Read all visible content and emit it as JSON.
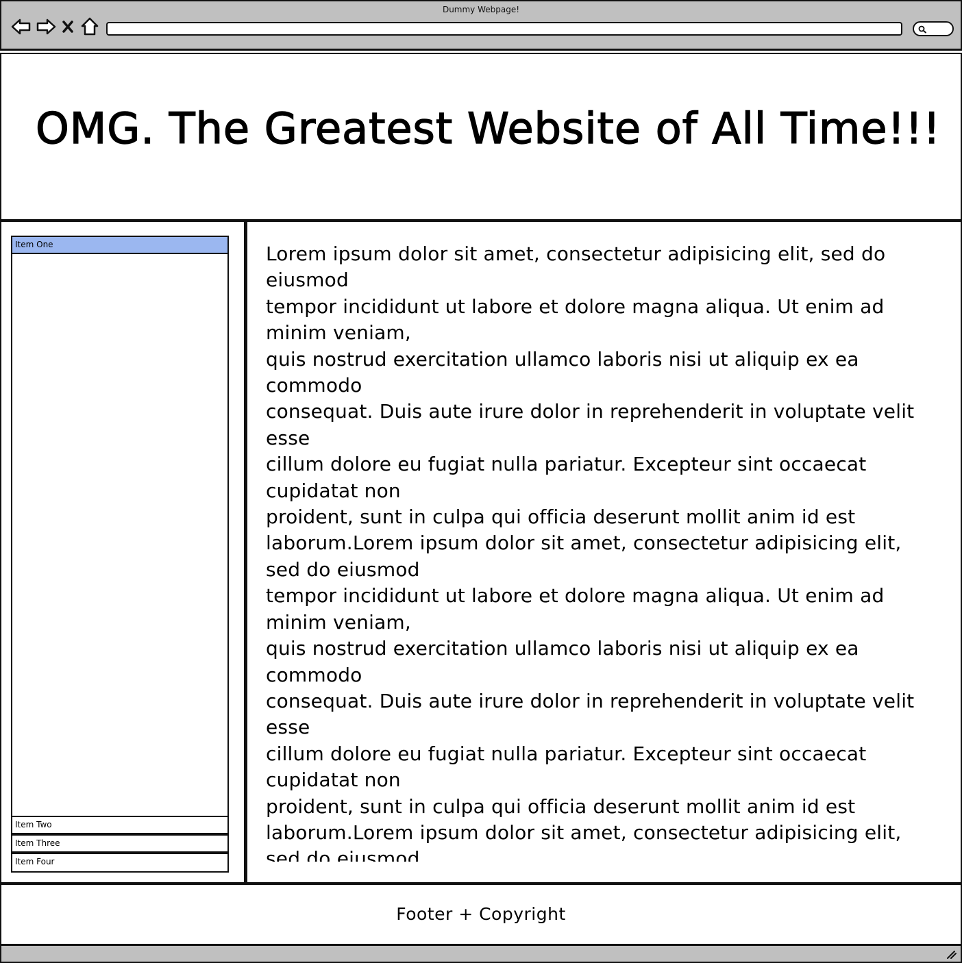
{
  "browser": {
    "title": "Dummy Webpage!",
    "url_value": "",
    "nav": {
      "back_icon": "arrow-left-icon",
      "forward_icon": "arrow-right-icon",
      "stop_icon": "close-icon",
      "home_icon": "home-icon",
      "search_icon": "search-icon"
    }
  },
  "header": {
    "title": "OMG. The Greatest Website of All Time!!!"
  },
  "sidebar": {
    "items": [
      {
        "label": "Item One",
        "active": true
      },
      {
        "label": "Item Two",
        "active": false
      },
      {
        "label": "Item Three",
        "active": false
      },
      {
        "label": "Item Four",
        "active": false
      }
    ],
    "active_color": "#9bb7f0"
  },
  "main": {
    "body_text": "Lorem ipsum dolor sit amet, consectetur adipisicing elit, sed do eiusmod\ntempor incididunt ut labore et dolore magna aliqua. Ut enim ad minim veniam,\nquis nostrud exercitation ullamco laboris nisi ut aliquip ex ea commodo\nconsequat. Duis aute irure dolor in reprehenderit in voluptate velit esse\ncillum dolore eu fugiat nulla pariatur. Excepteur sint occaecat cupidatat non\nproident, sunt in culpa qui officia deserunt mollit anim id est laborum.Lorem ipsum dolor sit amet, consectetur adipisicing elit, sed do eiusmod\ntempor incididunt ut labore et dolore magna aliqua. Ut enim ad minim veniam,\nquis nostrud exercitation ullamco laboris nisi ut aliquip ex ea commodo\nconsequat. Duis aute irure dolor in reprehenderit in voluptate velit esse\ncillum dolore eu fugiat nulla pariatur. Excepteur sint occaecat cupidatat non\nproident, sunt in culpa qui officia deserunt mollit anim id est laborum.Lorem ipsum dolor sit amet, consectetur adipisicing elit, sed do eiusmod"
  },
  "footer": {
    "text": "Footer + Copyright"
  },
  "colors": {
    "chrome": "#c0c0c0",
    "border": "#111111"
  }
}
